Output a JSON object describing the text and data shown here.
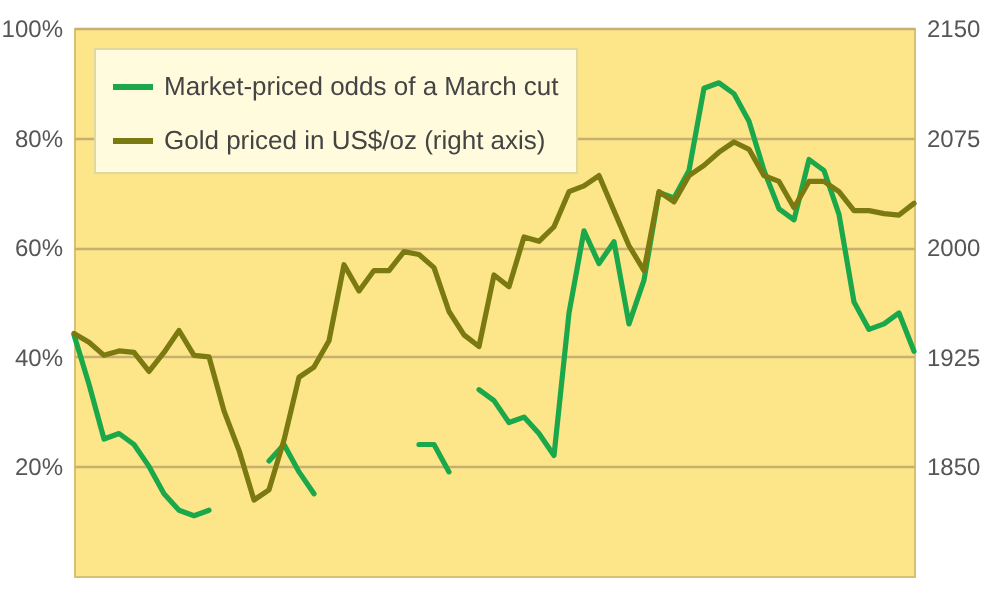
{
  "chart_data": {
    "type": "line",
    "categories": [
      null,
      null,
      null,
      null,
      null,
      null,
      null,
      null,
      null,
      null,
      null,
      null,
      null,
      null,
      null,
      null,
      null,
      null,
      null,
      null,
      null,
      null,
      null,
      null,
      null,
      null,
      null,
      null,
      null,
      null,
      null,
      null,
      null,
      null,
      null,
      null,
      null,
      null,
      null,
      null,
      null,
      null,
      null,
      null,
      null,
      null,
      null,
      null,
      null,
      null,
      null,
      null,
      null,
      null,
      null,
      null,
      null
    ],
    "series": [
      {
        "name": "Market-priced odds of a March cut",
        "color": "#1aa84a",
        "values": [
          44,
          35,
          25,
          26,
          24,
          20,
          15,
          12,
          11,
          12,
          null,
          null,
          null,
          21,
          24,
          19,
          15,
          null,
          null,
          null,
          null,
          null,
          null,
          24,
          24,
          19,
          null,
          34,
          32,
          28,
          29,
          26,
          22,
          48,
          63,
          57,
          61,
          46,
          54,
          70,
          69,
          74,
          89,
          90,
          88,
          83,
          74,
          67,
          65,
          76,
          74,
          66,
          50,
          45,
          46,
          48,
          41
        ]
      },
      {
        "name": "Gold priced in US$/oz (right axis)",
        "color": "#7a7a10",
        "axis": "y2",
        "values": [
          1941,
          1935,
          1926,
          1929,
          1928,
          1915,
          1928,
          1943,
          1926,
          1925,
          1888,
          1861,
          1827,
          1834,
          1868,
          1911,
          1918,
          1936,
          1988,
          1970,
          1984,
          1984,
          1997,
          1995,
          1986,
          1956,
          1940,
          1932,
          1981,
          1973,
          2007,
          2004,
          2014,
          2038,
          2042,
          2049,
          2025,
          2001,
          1984,
          2038,
          2031,
          2049,
          2056,
          2065,
          2072,
          2067,
          2049,
          2045,
          2027,
          2045,
          2045,
          2038,
          2025,
          2025,
          2023,
          2022,
          2030
        ]
      }
    ],
    "ylim": [
      0,
      100
    ],
    "yticks": [
      {
        "value": 20,
        "label": "20%"
      },
      {
        "value": 40,
        "label": "40%"
      },
      {
        "value": 60,
        "label": "60%"
      },
      {
        "value": 80,
        "label": "80%"
      },
      {
        "value": 100,
        "label": "100%"
      }
    ],
    "y2lim": [
      1775,
      2150
    ],
    "y2ticks": [
      1850,
      1925,
      2000,
      2075,
      2150
    ],
    "grid": "y",
    "legend": "top left"
  }
}
